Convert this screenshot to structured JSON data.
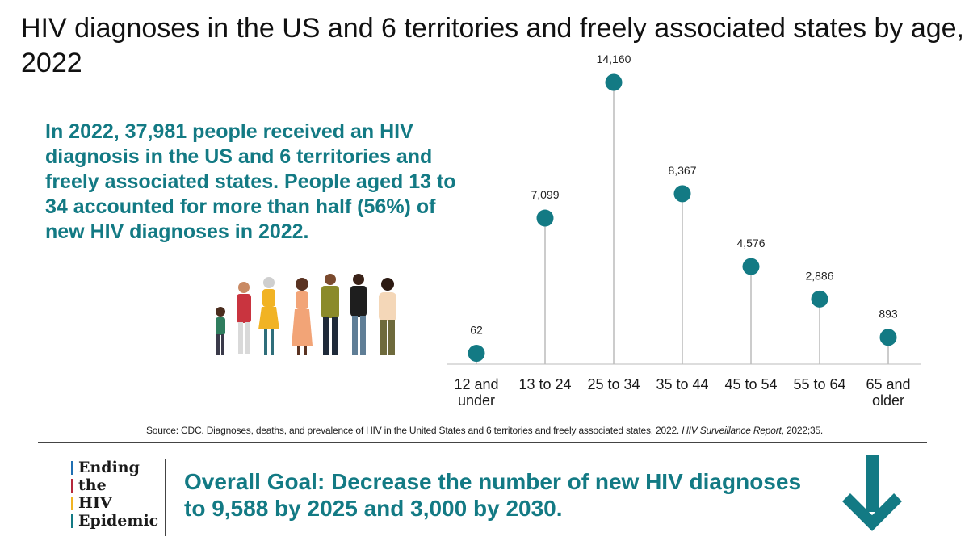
{
  "title": "HIV diagnoses in the US and 6 territories and freely associated states by age, 2022",
  "summary": "In 2022, 37,981 people received an HIV diagnosis in the US and 6 territories and freely associated states. People aged 13 to 34 accounted for more than half (56%) of new HIV diagnoses in 2022.",
  "chart_data": {
    "type": "scatter",
    "style": "lollipop",
    "title": "HIV diagnoses in the US and 6 territories and freely associated states by age, 2022",
    "xlabel": "",
    "ylabel": "",
    "categories": [
      "12 and under",
      "13 to 24",
      "25 to 34",
      "35 to 44",
      "45 to 54",
      "55 to 64",
      "65 and older"
    ],
    "category_lines": [
      [
        "12 and",
        "under"
      ],
      [
        "13 to 24"
      ],
      [
        "25 to 34"
      ],
      [
        "35 to 44"
      ],
      [
        "45 to 54"
      ],
      [
        "55 to 64"
      ],
      [
        "65 and",
        "older"
      ]
    ],
    "values": [
      62,
      7099,
      14160,
      8367,
      4576,
      2886,
      893
    ],
    "value_labels": [
      "62",
      "7,099",
      "14,160",
      "8,367",
      "4,576",
      "2,886",
      "893"
    ],
    "ylim": [
      0,
      14160
    ],
    "grid": false,
    "colors": {
      "marker": "#137a84",
      "stem": "#bbbbbb",
      "axis": "#bbbbbb"
    }
  },
  "source": {
    "prefix": "Source: CDC. Diagnoses, deaths, and prevalence of HIV in the United States and 6 territories and freely associated states, 2022. ",
    "italic": "HIV Surveillance Report",
    "suffix": ", 2022;35."
  },
  "logo": {
    "lines": [
      "Ending",
      "the",
      "HIV",
      "Epidemic"
    ],
    "bar_colors": [
      "#1f6fb2",
      "#b5283c",
      "#f0b323",
      "#137a84"
    ]
  },
  "goal": {
    "label": "Overall Goal:",
    "text": " Decrease the number of new HIV diagnoses to 9,588 by 2025 and 3,000 by 2030."
  },
  "colors": {
    "accent": "#137a84",
    "arrow": "#137a84"
  },
  "icons": {
    "people": "people-group-illustration",
    "arrow": "down-arrow-icon"
  }
}
